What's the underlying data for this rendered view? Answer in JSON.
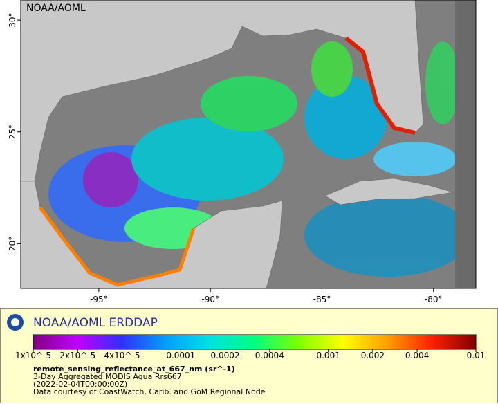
{
  "map": {
    "corner_label": "NOAA/AOML",
    "xlim": [
      -98.5,
      -78.1
    ],
    "ylim": [
      18,
      30.9
    ],
    "xticks": [
      {
        "value": -95,
        "label": "-95°"
      },
      {
        "value": -90,
        "label": "-90°"
      },
      {
        "value": -85,
        "label": "-85°"
      },
      {
        "value": -80,
        "label": "-80°"
      }
    ],
    "yticks": [
      {
        "value": 20,
        "label": "20°"
      },
      {
        "value": 25,
        "label": "25°"
      },
      {
        "value": 30,
        "label": "30°"
      }
    ]
  },
  "legend": {
    "title": "NOAA/AOML ERDDAP",
    "colorbar": {
      "scale": "log",
      "lim": [
        1e-05,
        0.01
      ],
      "ticks": [
        {
          "value": 1e-05,
          "label": "1x10^-5"
        },
        {
          "value": 2e-05,
          "label": "2x10^-5"
        },
        {
          "value": 4e-05,
          "label": "4x10^-5"
        },
        0.0001,
        0.0002,
        0.0004,
        0.001,
        0.002,
        0.004,
        0.01
      ],
      "colors": [
        "#800080",
        "#c000ff",
        "#3030ff",
        "#00a0ff",
        "#00e0e0",
        "#00ff80",
        "#80ff00",
        "#ffff00",
        "#ffa000",
        "#ff2000",
        "#800000"
      ]
    },
    "variable": "remote_sensing_reflectance_at_667_nm (sr^-1)",
    "lines": [
      "3-Day Aggregated MODIS Aqua Rrs667",
      "(2022-02-04T00:00:00Z)",
      "Data courtesy of CoastWatch, Carib. and GoM Regional Node"
    ]
  }
}
